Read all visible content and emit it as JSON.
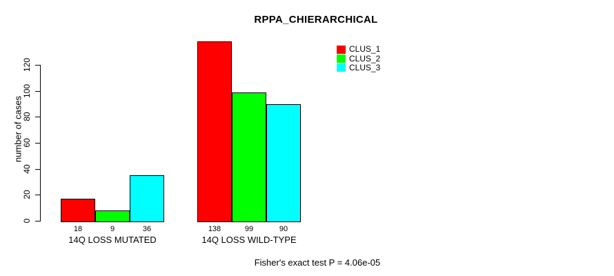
{
  "title": "RPPA_CHIERARCHICAL",
  "footer": "Fisher's exact test P = 4.06e-05",
  "chart_data": {
    "type": "bar",
    "title": "RPPA_CHIERARCHICAL",
    "xlabel": "",
    "ylabel": "number of cases",
    "categories": [
      "14Q LOSS MUTATED",
      "14Q LOSS WILD-TYPE"
    ],
    "series": [
      {
        "name": "CLUS_1",
        "color": "#ff0000",
        "values": [
          18,
          138
        ]
      },
      {
        "name": "CLUS_2",
        "color": "#00ff00",
        "values": [
          9,
          99
        ]
      },
      {
        "name": "CLUS_3",
        "color": "#00ffff",
        "values": [
          36,
          90
        ]
      }
    ],
    "bar_value_labels": [
      [
        "18",
        "9",
        "36"
      ],
      [
        "138",
        "99",
        "90"
      ]
    ],
    "y_ticks": [
      0,
      20,
      40,
      60,
      80,
      100,
      120
    ],
    "ylim": [
      0,
      140
    ],
    "grid": false,
    "bar_border_color": "#000000",
    "legend": {
      "position": "top-right",
      "labels": [
        "CLUS_1",
        "CLUS_2",
        "CLUS_3"
      ]
    },
    "annotation": "Fisher's exact test P = 4.06e-05"
  }
}
